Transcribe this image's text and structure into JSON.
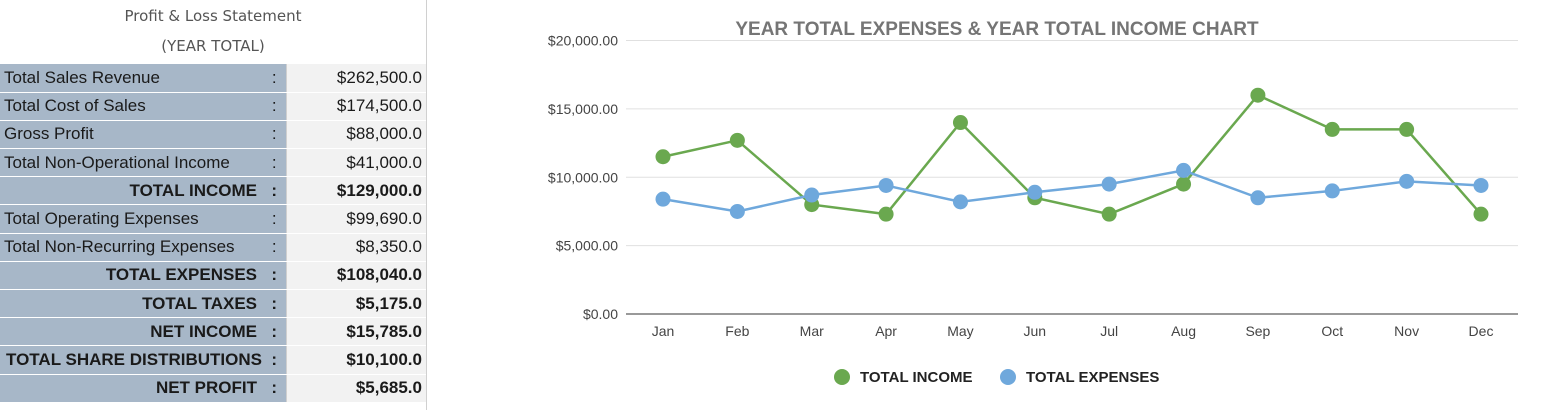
{
  "statement": {
    "title": "Profit & Loss Statement",
    "subtitle": "(YEAR TOTAL)",
    "rows": [
      {
        "label": "Total Sales Revenue",
        "colon": ":",
        "value": "$262,500.0",
        "bold": false
      },
      {
        "label": "Total Cost of Sales",
        "colon": ":",
        "value": "$174,500.0",
        "bold": false
      },
      {
        "label": "Gross Profit",
        "colon": ":",
        "value": "$88,000.0",
        "bold": false
      },
      {
        "label": "Total Non-Operational Income",
        "colon": ":",
        "value": "$41,000.0",
        "bold": false
      },
      {
        "label": "TOTAL INCOME",
        "colon": ":",
        "value": "$129,000.0",
        "bold": true
      },
      {
        "label": "Total Operating Expenses",
        "colon": ":",
        "value": "$99,690.0",
        "bold": false
      },
      {
        "label": "Total Non-Recurring Expenses",
        "colon": ":",
        "value": "$8,350.0",
        "bold": false
      },
      {
        "label": "TOTAL EXPENSES",
        "colon": ":",
        "value": "$108,040.0",
        "bold": true
      },
      {
        "label": "TOTAL TAXES",
        "colon": ":",
        "value": "$5,175.0",
        "bold": true
      },
      {
        "label": "NET INCOME",
        "colon": ":",
        "value": "$15,785.0",
        "bold": true
      },
      {
        "label": "TOTAL SHARE DISTRIBUTIONS",
        "colon": ":",
        "value": "$10,100.0",
        "bold": true
      },
      {
        "label": "NET PROFIT",
        "colon": ":",
        "value": "$5,685.0",
        "bold": true
      }
    ]
  },
  "chart_data": {
    "type": "line",
    "title": "YEAR TOTAL EXPENSES & YEAR TOTAL INCOME CHART",
    "xlabel": "",
    "ylabel": "",
    "categories": [
      "Jan",
      "Feb",
      "Mar",
      "Apr",
      "May",
      "Jun",
      "Jul",
      "Aug",
      "Sep",
      "Oct",
      "Nov",
      "Dec"
    ],
    "y_ticks": [
      0,
      5000,
      10000,
      15000,
      20000
    ],
    "y_tick_labels": [
      "$0.00",
      "$5,000.00",
      "$10,000.00",
      "$15,000.00",
      "$20,000.00"
    ],
    "ylim": [
      0,
      21500
    ],
    "grid": true,
    "legend_position": "bottom",
    "series": [
      {
        "name": "TOTAL INCOME",
        "color": "#6aa84f",
        "values": [
          11500,
          12700,
          8000,
          7300,
          14000,
          8500,
          7300,
          9500,
          16000,
          13500,
          13500,
          7300
        ]
      },
      {
        "name": "TOTAL EXPENSES",
        "color": "#6fa8dc",
        "values": [
          8400,
          7500,
          8700,
          9400,
          8200,
          8900,
          9500,
          10500,
          8500,
          9000,
          9700,
          9400
        ]
      }
    ]
  }
}
